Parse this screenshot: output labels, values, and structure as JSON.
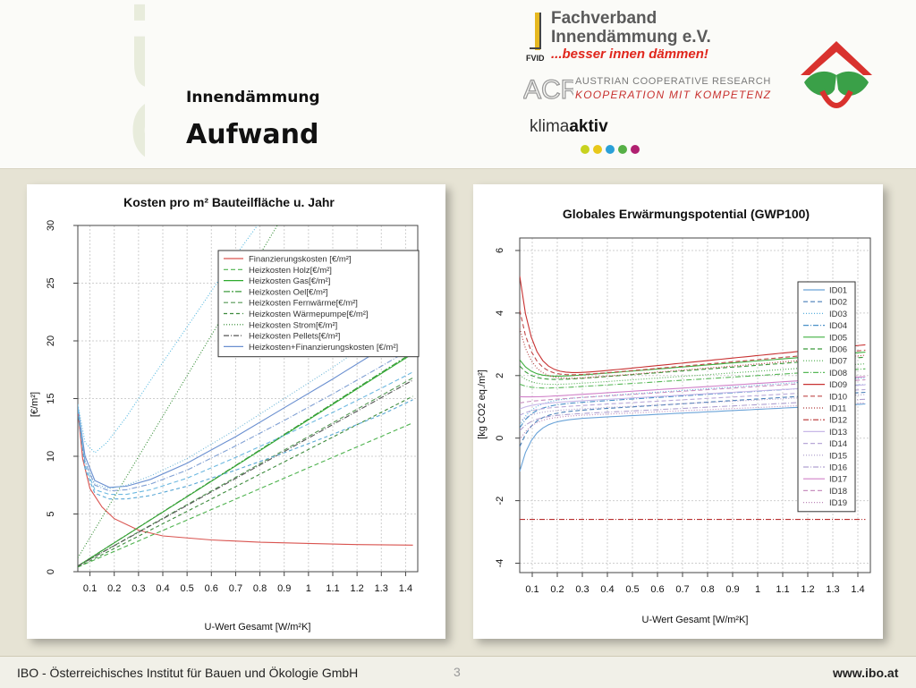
{
  "header": {
    "watermark": "IBO",
    "subtitle": "Innendämmung",
    "title": "Aufwand"
  },
  "logos": {
    "fvid_line1": "Fachverband",
    "fvid_line2": "Innendämmung e.V.",
    "fvid_slogan": "...besser innen dämmen!",
    "acr_line1": "AUSTRIAN COOPERATIVE RESEARCH",
    "acr_line2": "KOOPERATION MIT KOMPETENZ",
    "klima_a": "klima",
    "klima_b": "aktiv"
  },
  "footer": {
    "left": "IBO - Österreichisches Institut für Bauen und Ökologie GmbH",
    "page": "3",
    "right": "www.ibo.at"
  },
  "chart_data": [
    {
      "type": "line",
      "title": "Kosten pro m² Bauteilfläche u. Jahr",
      "xlabel": "U-Wert Gesamt [W/m²K]",
      "ylabel": "[€/m²]",
      "xlim": [
        0.05,
        1.45
      ],
      "ylim": [
        0,
        30
      ],
      "x_ticks": [
        0.1,
        0.2,
        0.3,
        0.4,
        0.5,
        0.6,
        0.7,
        0.8,
        0.9,
        1,
        1.1,
        1.2,
        1.3,
        1.4
      ],
      "y_ticks": [
        0,
        5,
        10,
        15,
        20,
        25,
        30
      ],
      "grid": true,
      "legend_position": "top-right",
      "series": [
        {
          "name": "Finanzierungskosten [€/m²]",
          "color": "#d9534f",
          "dash": "",
          "x": [
            0.05,
            0.07,
            0.1,
            0.15,
            0.2,
            0.3,
            0.4,
            0.6,
            0.8,
            1.0,
            1.2,
            1.43
          ],
          "y": [
            14,
            9.8,
            7.2,
            5.6,
            4.6,
            3.6,
            3.1,
            2.75,
            2.55,
            2.45,
            2.35,
            2.3
          ]
        },
        {
          "name": "Heizkosten Holz[€/m²]",
          "color": "#4fb34f",
          "dash": "5,3",
          "x": [
            0.05,
            1.43
          ],
          "y": [
            0.4,
            12.9
          ]
        },
        {
          "name": "Heizkosten Gas[€/m²]",
          "color": "#2eaa2e",
          "dash": "",
          "x": [
            0.05,
            1.43
          ],
          "y": [
            0.5,
            18.9
          ]
        },
        {
          "name": "Heizkosten Oel[€/m²]",
          "color": "#3a9a3a",
          "dash": "7,2,2,2",
          "x": [
            0.05,
            1.43
          ],
          "y": [
            0.5,
            19
          ]
        },
        {
          "name": "Heizkosten Fernwärme[€/m²]",
          "color": "#559955",
          "dash": "5,3",
          "x": [
            0.05,
            1.43
          ],
          "y": [
            0.5,
            16.8
          ]
        },
        {
          "name": "Heizkosten Wärmepumpe[€/m²]",
          "color": "#3d8b3d",
          "dash": "4,3",
          "x": [
            0.05,
            1.43
          ],
          "y": [
            0.4,
            15.2
          ]
        },
        {
          "name": "Heizkosten Strom[€/m²]",
          "color": "#2f8a2f",
          "dash": "1,2",
          "x": [
            0.05,
            0.9
          ],
          "y": [
            1.2,
            31
          ]
        },
        {
          "name": "Heizkosten Pellets[€/m²]",
          "color": "#555555",
          "dash": "6,2,1,2",
          "x": [
            0.05,
            1.43
          ],
          "y": [
            0.5,
            16.6
          ]
        },
        {
          "name": "Heizkosten+Finanzierungskosten [€/m²]",
          "color": "#6a8fd0",
          "dash": "",
          "x": [
            0.05,
            0.08,
            0.12,
            0.18,
            0.25,
            0.35,
            0.5,
            0.7,
            0.9,
            1.1,
            1.3,
            1.43
          ],
          "y": [
            14.3,
            10,
            7.9,
            7.3,
            7.4,
            8,
            9.4,
            11.7,
            14.2,
            16.7,
            19.3,
            21
          ]
        },
        {
          "name": "",
          "color": "#55b8e0",
          "dash": "1,2",
          "x": [
            0.05,
            0.08,
            0.12,
            0.17,
            0.25,
            0.35,
            0.5,
            0.7,
            0.9
          ],
          "y": [
            14.5,
            11.2,
            10.3,
            11.2,
            13.4,
            16.6,
            21.2,
            27.4,
            33.2
          ]
        },
        {
          "name": "",
          "color": "#6fb7d8",
          "dash": "1,2",
          "x": [
            0.05,
            0.08,
            0.12,
            0.18,
            0.25,
            0.35,
            0.5,
            0.7,
            0.9,
            1.1,
            1.3,
            1.43
          ],
          "y": [
            14.4,
            9.6,
            7.6,
            7.2,
            7.5,
            8.3,
            9.8,
            12.3,
            15,
            17.7,
            20.6,
            22.8
          ]
        },
        {
          "name": "",
          "color": "#7f9fd3",
          "dash": "6,2,1,2",
          "x": [
            0.05,
            0.08,
            0.12,
            0.18,
            0.25,
            0.35,
            0.5,
            0.7,
            0.9,
            1.1,
            1.3,
            1.43
          ],
          "y": [
            14.2,
            9.5,
            7.5,
            7,
            7.1,
            7.6,
            8.8,
            10.9,
            13.1,
            15.4,
            17.8,
            19.4
          ]
        },
        {
          "name": "",
          "color": "#6cb8e0",
          "dash": "5,3",
          "x": [
            0.05,
            0.08,
            0.12,
            0.18,
            0.25,
            0.35,
            0.5,
            0.7,
            0.9,
            1.1,
            1.3,
            1.43
          ],
          "y": [
            14.1,
            9.2,
            7.1,
            6.7,
            6.7,
            7.1,
            8.1,
            9.9,
            11.8,
            13.8,
            15.9,
            17.3
          ]
        },
        {
          "name": "",
          "color": "#5aa8d5",
          "dash": "4,3",
          "x": [
            0.05,
            0.08,
            0.12,
            0.18,
            0.25,
            0.35,
            0.5,
            0.7,
            0.9,
            1.1,
            1.3,
            1.43
          ],
          "y": [
            14,
            8.9,
            6.8,
            6.3,
            6.3,
            6.6,
            7.4,
            8.8,
            10.3,
            11.9,
            13.6,
            14.9
          ]
        }
      ]
    },
    {
      "type": "line",
      "title": "Globales Erwärmungspotential (GWP100)",
      "xlabel": "U-Wert Gesamt [W/m²K]",
      "ylabel": "[kg CO2 eq./m²]",
      "xlim": [
        0.05,
        1.45
      ],
      "ylim": [
        -4.3,
        6.4
      ],
      "x_ticks": [
        0.1,
        0.2,
        0.3,
        0.4,
        0.5,
        0.6,
        0.7,
        0.8,
        0.9,
        1,
        1.1,
        1.2,
        1.3,
        1.4
      ],
      "y_ticks": [
        -4,
        -2,
        0,
        2,
        4,
        6
      ],
      "grid": true,
      "legend_position": "right",
      "series": [
        {
          "name": "ID01",
          "color": "#6aa3d8",
          "dash": "",
          "y0": -1.0,
          "ymin": 0.6,
          "m": 0.4
        },
        {
          "name": "ID02",
          "color": "#4a7fb8",
          "dash": "5,3",
          "y0": -0.2,
          "ymin": 0.85,
          "m": 0.5
        },
        {
          "name": "ID03",
          "color": "#5ab0dd",
          "dash": "1,2",
          "y0": 0.5,
          "ymin": 1.25,
          "m": 0.55
        },
        {
          "name": "ID04",
          "color": "#4a90c8",
          "dash": "6,2,1,2",
          "y0": 0.4,
          "ymin": 1.1,
          "m": 0.5
        },
        {
          "name": "ID05",
          "color": "#40b040",
          "dash": "",
          "y0": 2.6,
          "ymin": 1.95,
          "m": 0.65
        },
        {
          "name": "ID06",
          "color": "#3a9a3a",
          "dash": "5,3",
          "y0": 2.4,
          "ymin": 1.85,
          "m": 0.6
        },
        {
          "name": "ID07",
          "color": "#4aaa4a",
          "dash": "1,2",
          "y0": 2.1,
          "ymin": 1.7,
          "m": 0.55
        },
        {
          "name": "ID08",
          "color": "#58b858",
          "dash": "6,2,1,2",
          "y0": 1.8,
          "ymin": 1.6,
          "m": 0.5
        },
        {
          "name": "ID09",
          "color": "#c83232",
          "dash": "",
          "y0": 5.3,
          "ymin": 2.0,
          "m": 0.8
        },
        {
          "name": "ID10",
          "color": "#c04a4a",
          "dash": "5,3",
          "y0": 4.2,
          "ymin": 1.95,
          "m": 0.7
        },
        {
          "name": "ID11",
          "color": "#b03a3a",
          "dash": "1,2",
          "y0": 3.6,
          "ymin": 1.85,
          "m": 0.65
        },
        {
          "name": "ID12",
          "color": "#b83030",
          "dash": "6,2,1,2",
          "y0": -2.6,
          "ymin": -2.6,
          "m": 0.0
        },
        {
          "name": "ID13",
          "color": "#c8b8e8",
          "dash": "",
          "y0": 1.0,
          "ymin": 1.15,
          "m": 0.45
        },
        {
          "name": "ID14",
          "color": "#b8a8d8",
          "dash": "5,3",
          "y0": 0.8,
          "ymin": 1.0,
          "m": 0.45
        },
        {
          "name": "ID15",
          "color": "#a898c8",
          "dash": "1,2",
          "y0": 0.6,
          "ymin": 0.9,
          "m": 0.4
        },
        {
          "name": "ID16",
          "color": "#b0a0d0",
          "dash": "6,2,1,2",
          "y0": 0.3,
          "ymin": 0.75,
          "m": 0.4
        },
        {
          "name": "ID17",
          "color": "#d080c8",
          "dash": "",
          "y0": 1.4,
          "ymin": 1.35,
          "m": 0.5
        },
        {
          "name": "ID18",
          "color": "#c890c0",
          "dash": "5,3",
          "y0": 1.2,
          "ymin": 1.25,
          "m": 0.5
        },
        {
          "name": "ID19",
          "color": "#bc86b8",
          "dash": "1,2",
          "y0": 0.0,
          "ymin": 0.7,
          "m": 0.35
        }
      ]
    }
  ]
}
